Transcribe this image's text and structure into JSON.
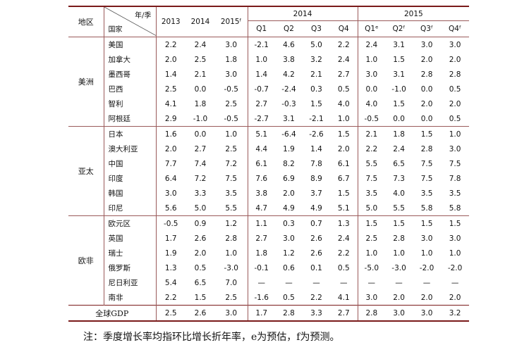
{
  "header": {
    "region_label": "地区",
    "corner_top": "年/季",
    "corner_bottom": "国家",
    "years": [
      "2013",
      "2014",
      "2015ᶠ"
    ],
    "group_2014": "2014",
    "group_2015": "2015",
    "q2014": [
      "Q1",
      "Q2",
      "Q3",
      "Q4"
    ],
    "q2015": [
      "Q1ᵉ",
      "Q2ᶠ",
      "Q3ᶠ",
      "Q4ᶠ"
    ]
  },
  "groups": [
    {
      "region": "美洲",
      "rows": [
        {
          "country": "美国",
          "values": [
            "2.2",
            "2.4",
            "3.0",
            "-2.1",
            "4.6",
            "5.0",
            "2.2",
            "2.4",
            "3.1",
            "3.0",
            "3.0"
          ]
        },
        {
          "country": "加拿大",
          "values": [
            "2.0",
            "2.5",
            "1.8",
            "1.0",
            "3.8",
            "3.2",
            "2.4",
            "1.0",
            "1.5",
            "2.0",
            "2.0"
          ]
        },
        {
          "country": "墨西哥",
          "values": [
            "1.4",
            "2.1",
            "3.0",
            "1.4",
            "4.2",
            "2.1",
            "2.7",
            "3.0",
            "3.1",
            "2.8",
            "2.8"
          ]
        },
        {
          "country": "巴西",
          "values": [
            "2.5",
            "0.0",
            "-0.5",
            "-0.7",
            "-2.4",
            "0.3",
            "0.5",
            "0.0",
            "-1.0",
            "0.0",
            "0.5"
          ]
        },
        {
          "country": "智利",
          "values": [
            "4.1",
            "1.8",
            "2.5",
            "2.7",
            "-0.3",
            "1.5",
            "4.0",
            "4.0",
            "1.5",
            "2.0",
            "2.0"
          ]
        },
        {
          "country": "阿根廷",
          "values": [
            "2.9",
            "-1.0",
            "-0.5",
            "-2.7",
            "3.1",
            "-2.1",
            "1.0",
            "-0.5",
            "0.0",
            "0.0",
            "0.5"
          ]
        }
      ]
    },
    {
      "region": "亚太",
      "rows": [
        {
          "country": "日本",
          "values": [
            "1.6",
            "0.0",
            "1.0",
            "5.1",
            "-6.4",
            "-2.6",
            "1.5",
            "2.1",
            "1.8",
            "1.5",
            "1.0"
          ]
        },
        {
          "country": "澳大利亚",
          "values": [
            "2.0",
            "2.7",
            "2.5",
            "4.4",
            "1.9",
            "1.4",
            "2.0",
            "2.2",
            "2.4",
            "2.8",
            "3.0"
          ]
        },
        {
          "country": "中国",
          "values": [
            "7.7",
            "7.4",
            "7.2",
            "6.1",
            "8.2",
            "7.8",
            "6.1",
            "5.5",
            "6.5",
            "7.5",
            "7.5"
          ]
        },
        {
          "country": "印度",
          "values": [
            "6.4",
            "7.2",
            "7.5",
            "7.6",
            "6.9",
            "8.9",
            "6.7",
            "7.5",
            "7.3",
            "7.5",
            "7.8"
          ]
        },
        {
          "country": "韩国",
          "values": [
            "3.0",
            "3.3",
            "3.5",
            "3.8",
            "2.0",
            "3.7",
            "1.5",
            "3.5",
            "4.0",
            "3.5",
            "3.5"
          ]
        },
        {
          "country": "印尼",
          "values": [
            "5.6",
            "5.0",
            "5.5",
            "4.7",
            "4.9",
            "4.9",
            "5.1",
            "5.0",
            "5.5",
            "5.8",
            "5.8"
          ]
        }
      ]
    },
    {
      "region": "欧非",
      "rows": [
        {
          "country": "欧元区",
          "values": [
            "-0.5",
            "0.9",
            "1.2",
            "1.1",
            "0.3",
            "0.7",
            "1.3",
            "1.5",
            "1.5",
            "1.5",
            "1.5"
          ]
        },
        {
          "country": "英国",
          "values": [
            "1.7",
            "2.6",
            "2.8",
            "2.7",
            "3.0",
            "2.6",
            "2.4",
            "2.5",
            "2.8",
            "3.0",
            "3.0"
          ]
        },
        {
          "country": "瑞士",
          "values": [
            "1.9",
            "2.0",
            "1.0",
            "1.8",
            "1.2",
            "2.6",
            "2.2",
            "1.0",
            "1.0",
            "1.0",
            "1.0"
          ]
        },
        {
          "country": "俄罗斯",
          "values": [
            "1.3",
            "0.5",
            "-3.0",
            "-0.1",
            "0.6",
            "0.1",
            "0.5",
            "-5.0",
            "-3.0",
            "-2.0",
            "-2.0"
          ]
        },
        {
          "country": "尼日利亚",
          "values": [
            "5.4",
            "6.5",
            "7.0",
            "—",
            "—",
            "—",
            "—",
            "—",
            "—",
            "—",
            "—"
          ]
        },
        {
          "country": "南非",
          "values": [
            "2.2",
            "1.5",
            "2.5",
            "-1.6",
            "0.5",
            "2.2",
            "4.1",
            "3.0",
            "2.0",
            "2.0",
            "2.0"
          ]
        }
      ]
    }
  ],
  "global": {
    "label": "全球GDP",
    "values": [
      "2.5",
      "2.6",
      "3.0",
      "1.7",
      "2.8",
      "3.3",
      "2.7",
      "2.8",
      "3.0",
      "3.0",
      "3.2"
    ]
  },
  "note": "注：季度增长率均指环比增长折年率，e为预估，f为预测。"
}
